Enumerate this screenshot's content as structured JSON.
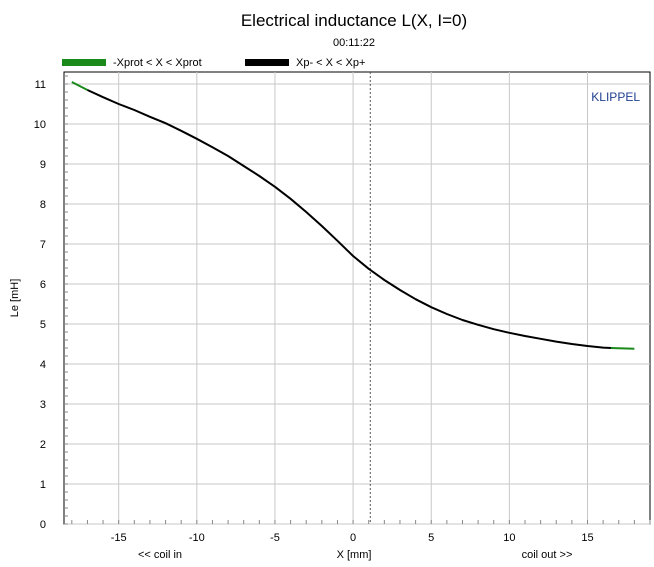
{
  "chart_data": {
    "type": "line",
    "title": "Electrical inductance L(X, I=0)",
    "subtitle": "00:11:22",
    "xlabel": "X [mm]",
    "ylabel": "Le [mH]",
    "x_left_note": "<< coil in",
    "x_right_note": "coil out >>",
    "brand": "KLIPPEL",
    "xlim": [
      -18.5,
      19
    ],
    "ylim": [
      0,
      11.3
    ],
    "xticks": [
      -15,
      -10,
      -5,
      0,
      5,
      10,
      15
    ],
    "yticks": [
      0,
      1,
      2,
      3,
      4,
      5,
      6,
      7,
      8,
      9,
      10,
      11
    ],
    "grid": true,
    "legend_position": "top",
    "vline_dotted_x": 1.1,
    "series": [
      {
        "name": "-Xprot < X < Xprot",
        "color": "#1a8a1a",
        "x": [
          -18,
          -17,
          16.5,
          18
        ],
        "y": [
          11.05,
          10.85,
          4.4,
          4.38
        ]
      },
      {
        "name": "Xp- < X < Xp+",
        "color": "#000000",
        "x": [
          -17,
          -16,
          -15,
          -14,
          -13,
          -12,
          -11,
          -10,
          -9,
          -8,
          -7,
          -6,
          -5,
          -4,
          -3,
          -2,
          -1,
          0,
          1,
          2,
          3,
          4,
          5,
          6,
          7,
          8,
          9,
          10,
          11,
          12,
          13,
          14,
          15,
          16,
          16.5
        ],
        "y": [
          10.85,
          10.67,
          10.5,
          10.35,
          10.18,
          10.02,
          9.83,
          9.63,
          9.42,
          9.2,
          8.95,
          8.7,
          8.43,
          8.13,
          7.8,
          7.45,
          7.08,
          6.7,
          6.38,
          6.1,
          5.85,
          5.62,
          5.42,
          5.25,
          5.1,
          4.98,
          4.87,
          4.78,
          4.7,
          4.63,
          4.56,
          4.5,
          4.45,
          4.41,
          4.4
        ]
      }
    ]
  }
}
